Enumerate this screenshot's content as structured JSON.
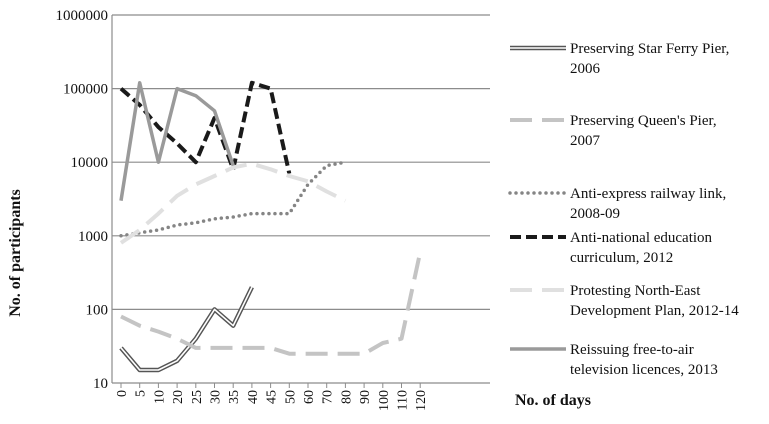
{
  "chart_data": {
    "type": "line",
    "title": "",
    "xlabel": "No. of days",
    "ylabel": "No. of participants",
    "y_scale": "log",
    "ylim": [
      10,
      1000000
    ],
    "grid": "horizontal",
    "legend_position": "right",
    "y_ticks": [
      "10",
      "100",
      "1000",
      "10000",
      "100000",
      "1000000"
    ],
    "categories": [
      "0",
      "5",
      "10",
      "20",
      "25",
      "30",
      "35",
      "40",
      "45",
      "50",
      "60",
      "70",
      "80",
      "90",
      "100",
      "110",
      "120"
    ],
    "series": [
      {
        "name": "Preserving Star Ferry Pier, 2006",
        "style": "double",
        "color": "#555555",
        "values": [
          30,
          15,
          15,
          20,
          40,
          100,
          60,
          200,
          null,
          null,
          null,
          null,
          null,
          null,
          null,
          null,
          null
        ]
      },
      {
        "name": "Preserving Queen's Pier, 2007",
        "style": "long-dash",
        "color": "#c4c4c4",
        "values": [
          80,
          60,
          50,
          40,
          30,
          30,
          30,
          30,
          30,
          25,
          25,
          25,
          25,
          25,
          35,
          40,
          600
        ]
      },
      {
        "name": "Anti-express railway link, 2008-09",
        "style": "dotted",
        "color": "#858585",
        "values": [
          1000,
          1100,
          1200,
          1400,
          1500,
          1700,
          1800,
          2000,
          2000,
          2000,
          5000,
          9000,
          10000,
          null,
          null,
          null,
          null
        ]
      },
      {
        "name": "Anti-national education curriculum, 2012",
        "style": "dashed",
        "color": "#1a1a1a",
        "values": [
          100000,
          60000,
          30000,
          18000,
          10000,
          40000,
          8000,
          120000,
          100000,
          7000,
          null,
          null,
          null,
          null,
          null,
          null,
          null
        ]
      },
      {
        "name": "Protesting North-East Development Plan, 2012-14",
        "style": "long-dash",
        "color": "#e0e0e0",
        "values": [
          800,
          1200,
          2000,
          3500,
          5000,
          6500,
          8500,
          9500,
          8000,
          6500,
          5500,
          4000,
          3000,
          null,
          null,
          null,
          null
        ]
      },
      {
        "name": "Reissuing free-to-air television licences, 2013",
        "style": "solid",
        "color": "#9a9a9a",
        "values": [
          3000,
          120000,
          10000,
          100000,
          80000,
          50000,
          9000,
          null,
          null,
          null,
          null,
          null,
          null,
          null,
          null,
          null,
          null
        ]
      }
    ]
  }
}
